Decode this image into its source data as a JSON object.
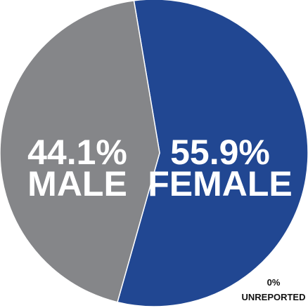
{
  "chart_data": {
    "type": "pie",
    "slices": [
      {
        "name": "FEMALE",
        "value": 55.9,
        "value_label": "55.9%",
        "color": "#214792"
      },
      {
        "name": "MALE",
        "value": 44.1,
        "value_label": "44.1%",
        "color": "#858689"
      },
      {
        "name": "UNREPORTED",
        "value": 0,
        "value_label": "0%",
        "color": "#214792"
      }
    ],
    "slice_border_color": "#ffffff"
  }
}
